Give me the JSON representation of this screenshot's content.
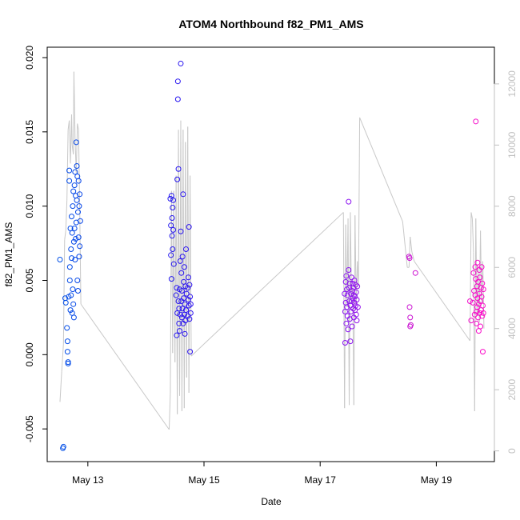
{
  "chart_data": {
    "type": "scatter",
    "title": "ATOM4 Northbound f82_PM1_AMS",
    "xlabel": "Date",
    "ylabel": "f82_PM1_AMS",
    "xlim": [
      12.3,
      20.0
    ],
    "ylim": [
      -0.0072,
      0.0207
    ],
    "y2lim": [
      -350,
      13200
    ],
    "x_ticks": [
      {
        "x": 13,
        "label": "May 13"
      },
      {
        "x": 15,
        "label": "May 15"
      },
      {
        "x": 17,
        "label": "May 17"
      },
      {
        "x": 19,
        "label": "May 19"
      }
    ],
    "y_ticks": [
      {
        "v": -0.005,
        "label": "-0.005"
      },
      {
        "v": 0.0,
        "label": "0.000"
      },
      {
        "v": 0.005,
        "label": "0.005"
      },
      {
        "v": 0.01,
        "label": "0.010"
      },
      {
        "v": 0.015,
        "label": "0.015"
      },
      {
        "v": 0.02,
        "label": "0.020"
      }
    ],
    "y2_ticks": [
      {
        "v": 0,
        "label": "0"
      },
      {
        "v": 2000,
        "label": "2000"
      },
      {
        "v": 4000,
        "label": "4000"
      },
      {
        "v": 6000,
        "label": "6000"
      },
      {
        "v": 8000,
        "label": "8000"
      },
      {
        "v": 10000,
        "label": "10000"
      },
      {
        "v": 12000,
        "label": "12000"
      }
    ],
    "grid": false,
    "series": [
      {
        "name": "f82_PM1_AMS",
        "kind": "scatter",
        "color_by": "time",
        "points": [
          [
            12.52,
            0.0064
          ],
          [
            12.57,
            -0.0063
          ],
          [
            12.58,
            -0.0062
          ],
          [
            12.61,
            0.0038
          ],
          [
            12.62,
            0.0035
          ],
          [
            12.64,
            0.0018
          ],
          [
            12.65,
            0.0009
          ],
          [
            12.65,
            0.0002
          ],
          [
            12.66,
            -0.0005
          ],
          [
            12.66,
            -0.0006
          ],
          [
            12.67,
            0.0039
          ],
          [
            12.68,
            0.0117
          ],
          [
            12.68,
            0.0124
          ],
          [
            12.69,
            0.0059
          ],
          [
            12.69,
            0.005
          ],
          [
            12.7,
            0.0085
          ],
          [
            12.7,
            0.003
          ],
          [
            12.71,
            0.0071
          ],
          [
            12.71,
            0.004
          ],
          [
            12.72,
            0.0065
          ],
          [
            12.72,
            0.0093
          ],
          [
            12.73,
            0.0028
          ],
          [
            12.73,
            0.0082
          ],
          [
            12.74,
            0.01
          ],
          [
            12.74,
            0.0044
          ],
          [
            12.75,
            0.011
          ],
          [
            12.75,
            0.0034
          ],
          [
            12.76,
            0.0025
          ],
          [
            12.76,
            0.0076
          ],
          [
            12.77,
            0.0085
          ],
          [
            12.77,
            0.0114
          ],
          [
            12.78,
            0.0123
          ],
          [
            12.78,
            0.0064
          ],
          [
            12.79,
            0.0107
          ],
          [
            12.79,
            0.0078
          ],
          [
            12.8,
            0.0143
          ],
          [
            12.8,
            0.0089
          ],
          [
            12.81,
            0.0127
          ],
          [
            12.81,
            0.0104
          ],
          [
            12.82,
            0.012
          ],
          [
            12.82,
            0.005
          ],
          [
            12.83,
            0.0096
          ],
          [
            12.83,
            0.0043
          ],
          [
            12.84,
            0.0079
          ],
          [
            12.84,
            0.0117
          ],
          [
            12.85,
            0.01
          ],
          [
            12.85,
            0.0066
          ],
          [
            12.86,
            0.0108
          ],
          [
            12.86,
            0.0073
          ],
          [
            12.87,
            0.009
          ],
          [
            14.42,
            0.0105
          ],
          [
            14.43,
            0.0087
          ],
          [
            14.43,
            0.0067
          ],
          [
            14.44,
            0.0051
          ],
          [
            14.44,
            0.0107
          ],
          [
            14.45,
            0.0092
          ],
          [
            14.45,
            0.008
          ],
          [
            14.46,
            0.0071
          ],
          [
            14.46,
            0.0099
          ],
          [
            14.47,
            0.0084
          ],
          [
            14.47,
            0.0104
          ],
          [
            14.48,
            0.0061
          ],
          [
            14.52,
            0.004
          ],
          [
            14.53,
            0.0045
          ],
          [
            14.53,
            0.0013
          ],
          [
            14.54,
            0.0118
          ],
          [
            14.54,
            0.0028
          ],
          [
            14.55,
            0.0184
          ],
          [
            14.55,
            0.0172
          ],
          [
            14.56,
            0.0125
          ],
          [
            14.56,
            0.0036
          ],
          [
            14.57,
            0.0021
          ],
          [
            14.57,
            0.0031
          ],
          [
            14.58,
            0.0016
          ],
          [
            14.58,
            0.0044
          ],
          [
            14.59,
            0.0063
          ],
          [
            14.59,
            0.0027
          ],
          [
            14.6,
            0.0196
          ],
          [
            14.6,
            0.0083
          ],
          [
            14.61,
            0.0036
          ],
          [
            14.61,
            0.0055
          ],
          [
            14.62,
            0.0025
          ],
          [
            14.62,
            0.0043
          ],
          [
            14.63,
            0.0066
          ],
          [
            14.63,
            0.0031
          ],
          [
            14.64,
            0.0108
          ],
          [
            14.64,
            0.0021
          ],
          [
            14.65,
            0.0049
          ],
          [
            14.65,
            0.0038
          ],
          [
            14.66,
            0.0027
          ],
          [
            14.66,
            0.0059
          ],
          [
            14.67,
            0.0014
          ],
          [
            14.67,
            0.0034
          ],
          [
            14.68,
            0.0046
          ],
          [
            14.68,
            0.0023
          ],
          [
            14.69,
            0.0071
          ],
          [
            14.69,
            0.003
          ],
          [
            14.7,
            0.0041
          ],
          [
            14.72,
            0.0045
          ],
          [
            14.72,
            0.0026
          ],
          [
            14.73,
            0.0037
          ],
          [
            14.73,
            0.0052
          ],
          [
            14.74,
            0.0033
          ],
          [
            14.74,
            0.0086
          ],
          [
            14.75,
            0.0024
          ],
          [
            14.75,
            0.0047
          ],
          [
            14.76,
            0.0002
          ],
          [
            14.76,
            0.0039
          ],
          [
            14.77,
            0.0028
          ],
          [
            14.77,
            0.0034
          ],
          [
            17.42,
            0.0041
          ],
          [
            17.43,
            0.0029
          ],
          [
            17.43,
            0.0008
          ],
          [
            17.44,
            0.0049
          ],
          [
            17.44,
            0.0035
          ],
          [
            17.45,
            0.0053
          ],
          [
            17.45,
            0.0021
          ],
          [
            17.46,
            0.0044
          ],
          [
            17.46,
            0.0032
          ],
          [
            17.47,
            0.0026
          ],
          [
            17.47,
            0.004
          ],
          [
            17.48,
            0.0017
          ],
          [
            17.49,
            0.0057
          ],
          [
            17.49,
            0.0103
          ],
          [
            17.5,
            0.0036
          ],
          [
            17.5,
            0.0045
          ],
          [
            17.51,
            0.0024
          ],
          [
            17.51,
            0.0048
          ],
          [
            17.52,
            0.0033
          ],
          [
            17.52,
            0.0009
          ],
          [
            17.53,
            0.0041
          ],
          [
            17.53,
            0.0029
          ],
          [
            17.54,
            0.0052
          ],
          [
            17.54,
            0.0036
          ],
          [
            17.55,
            0.0043
          ],
          [
            17.55,
            0.0019
          ],
          [
            17.56,
            0.0038
          ],
          [
            17.56,
            0.0048
          ],
          [
            17.57,
            0.0031
          ],
          [
            17.57,
            0.0045
          ],
          [
            17.58,
            0.0025
          ],
          [
            17.58,
            0.004
          ],
          [
            17.59,
            0.0035
          ],
          [
            17.59,
            0.005
          ],
          [
            17.6,
            0.003
          ],
          [
            17.6,
            0.0039
          ],
          [
            17.61,
            0.0047
          ],
          [
            17.61,
            0.0033
          ],
          [
            17.62,
            0.0027
          ],
          [
            17.62,
            0.0042
          ],
          [
            17.63,
            0.0037
          ],
          [
            17.63,
            0.0023
          ],
          [
            17.64,
            0.0046
          ],
          [
            17.65,
            0.0032
          ],
          [
            18.53,
            0.0066
          ],
          [
            18.54,
            0.0065
          ],
          [
            18.54,
            0.0032
          ],
          [
            18.55,
            0.0025
          ],
          [
            18.55,
            0.0019
          ],
          [
            18.56,
            0.002
          ],
          [
            18.64,
            0.0055
          ],
          [
            19.58,
            0.0036
          ],
          [
            19.6,
            0.0023
          ],
          [
            19.63,
            0.0035
          ],
          [
            19.64,
            0.0055
          ],
          [
            19.65,
            0.0043
          ],
          [
            19.66,
            0.0027
          ],
          [
            19.67,
            0.0059
          ],
          [
            19.67,
            0.004
          ],
          [
            19.68,
            0.0157
          ],
          [
            19.68,
            0.0051
          ],
          [
            19.69,
            0.0029
          ],
          [
            19.69,
            0.0021
          ],
          [
            19.7,
            0.0046
          ],
          [
            19.7,
            0.0032
          ],
          [
            19.71,
            0.0062
          ],
          [
            19.71,
            0.0038
          ],
          [
            19.72,
            0.0025
          ],
          [
            19.72,
            0.0049
          ],
          [
            19.73,
            0.0034
          ],
          [
            19.73,
            0.0016
          ],
          [
            19.74,
            0.0057
          ],
          [
            19.74,
            0.0041
          ],
          [
            19.75,
            0.0028
          ],
          [
            19.75,
            0.0052
          ],
          [
            19.76,
            0.0036
          ],
          [
            19.76,
            0.0019
          ],
          [
            19.77,
            0.0045
          ],
          [
            19.77,
            0.003
          ],
          [
            19.78,
            0.0059
          ],
          [
            19.78,
            0.0039
          ],
          [
            19.79,
            0.0026
          ],
          [
            19.79,
            0.0048
          ],
          [
            19.8,
            0.0033
          ],
          [
            19.8,
            0.0002
          ],
          [
            19.81,
            0.0044
          ],
          [
            19.81,
            0.0028
          ]
        ]
      },
      {
        "name": "secondary (right axis)",
        "kind": "line",
        "color": "#c8c8c8",
        "points": [
          [
            12.52,
            1600
          ],
          [
            12.55,
            2600
          ],
          [
            12.58,
            3500
          ],
          [
            12.6,
            6900
          ],
          [
            12.62,
            7200
          ],
          [
            12.64,
            8200
          ],
          [
            12.66,
            10500
          ],
          [
            12.68,
            10800
          ],
          [
            12.7,
            9400
          ],
          [
            12.72,
            11000
          ],
          [
            12.73,
            10000
          ],
          [
            12.75,
            9700
          ],
          [
            12.76,
            12400
          ],
          [
            12.78,
            10200
          ],
          [
            12.8,
            9100
          ],
          [
            12.82,
            10700
          ],
          [
            12.84,
            10500
          ],
          [
            12.86,
            7900
          ],
          [
            12.88,
            4800
          ],
          [
            14.4,
            700
          ],
          [
            14.42,
            1900
          ],
          [
            14.44,
            8500
          ],
          [
            14.46,
            3200
          ],
          [
            14.48,
            8500
          ],
          [
            14.5,
            2900
          ],
          [
            14.52,
            9000
          ],
          [
            14.54,
            1200
          ],
          [
            14.56,
            10500
          ],
          [
            14.58,
            1800
          ],
          [
            14.6,
            10800
          ],
          [
            14.62,
            1300
          ],
          [
            14.64,
            10500
          ],
          [
            14.66,
            1400
          ],
          [
            14.68,
            10100
          ],
          [
            14.7,
            2400
          ],
          [
            14.72,
            10600
          ],
          [
            14.74,
            1900
          ],
          [
            14.76,
            9000
          ],
          [
            14.78,
            3100
          ],
          [
            17.4,
            7800
          ],
          [
            17.42,
            1400
          ],
          [
            17.44,
            7400
          ],
          [
            17.46,
            4700
          ],
          [
            17.48,
            7600
          ],
          [
            17.5,
            1500
          ],
          [
            17.52,
            7800
          ],
          [
            17.54,
            4900
          ],
          [
            17.56,
            5400
          ],
          [
            17.58,
            1500
          ],
          [
            17.6,
            7700
          ],
          [
            17.62,
            4800
          ],
          [
            17.64,
            6200
          ],
          [
            17.66,
            5400
          ],
          [
            17.68,
            10900
          ],
          [
            18.42,
            7500
          ],
          [
            18.5,
            6000
          ],
          [
            18.53,
            6000
          ],
          [
            18.55,
            7000
          ],
          [
            18.58,
            6500
          ],
          [
            18.62,
            6200
          ],
          [
            19.58,
            3600
          ],
          [
            19.6,
            7800
          ],
          [
            19.62,
            7600
          ],
          [
            19.64,
            6500
          ],
          [
            19.66,
            1300
          ],
          [
            19.68,
            7600
          ],
          [
            19.7,
            4400
          ],
          [
            19.72,
            6000
          ],
          [
            19.74,
            4200
          ],
          [
            19.76,
            7200
          ],
          [
            19.78,
            4800
          ],
          [
            19.8,
            6200
          ],
          [
            19.82,
            4000
          ]
        ],
        "segments": [
          [
            [
              12.88,
              4800
            ],
            [
              14.4,
              700
            ]
          ],
          [
            [
              14.78,
              3100
            ],
            [
              17.4,
              7800
            ]
          ],
          [
            [
              17.68,
              10900
            ],
            [
              18.42,
              7500
            ]
          ],
          [
            [
              18.62,
              6200
            ],
            [
              19.58,
              3600
            ]
          ]
        ]
      }
    ]
  }
}
